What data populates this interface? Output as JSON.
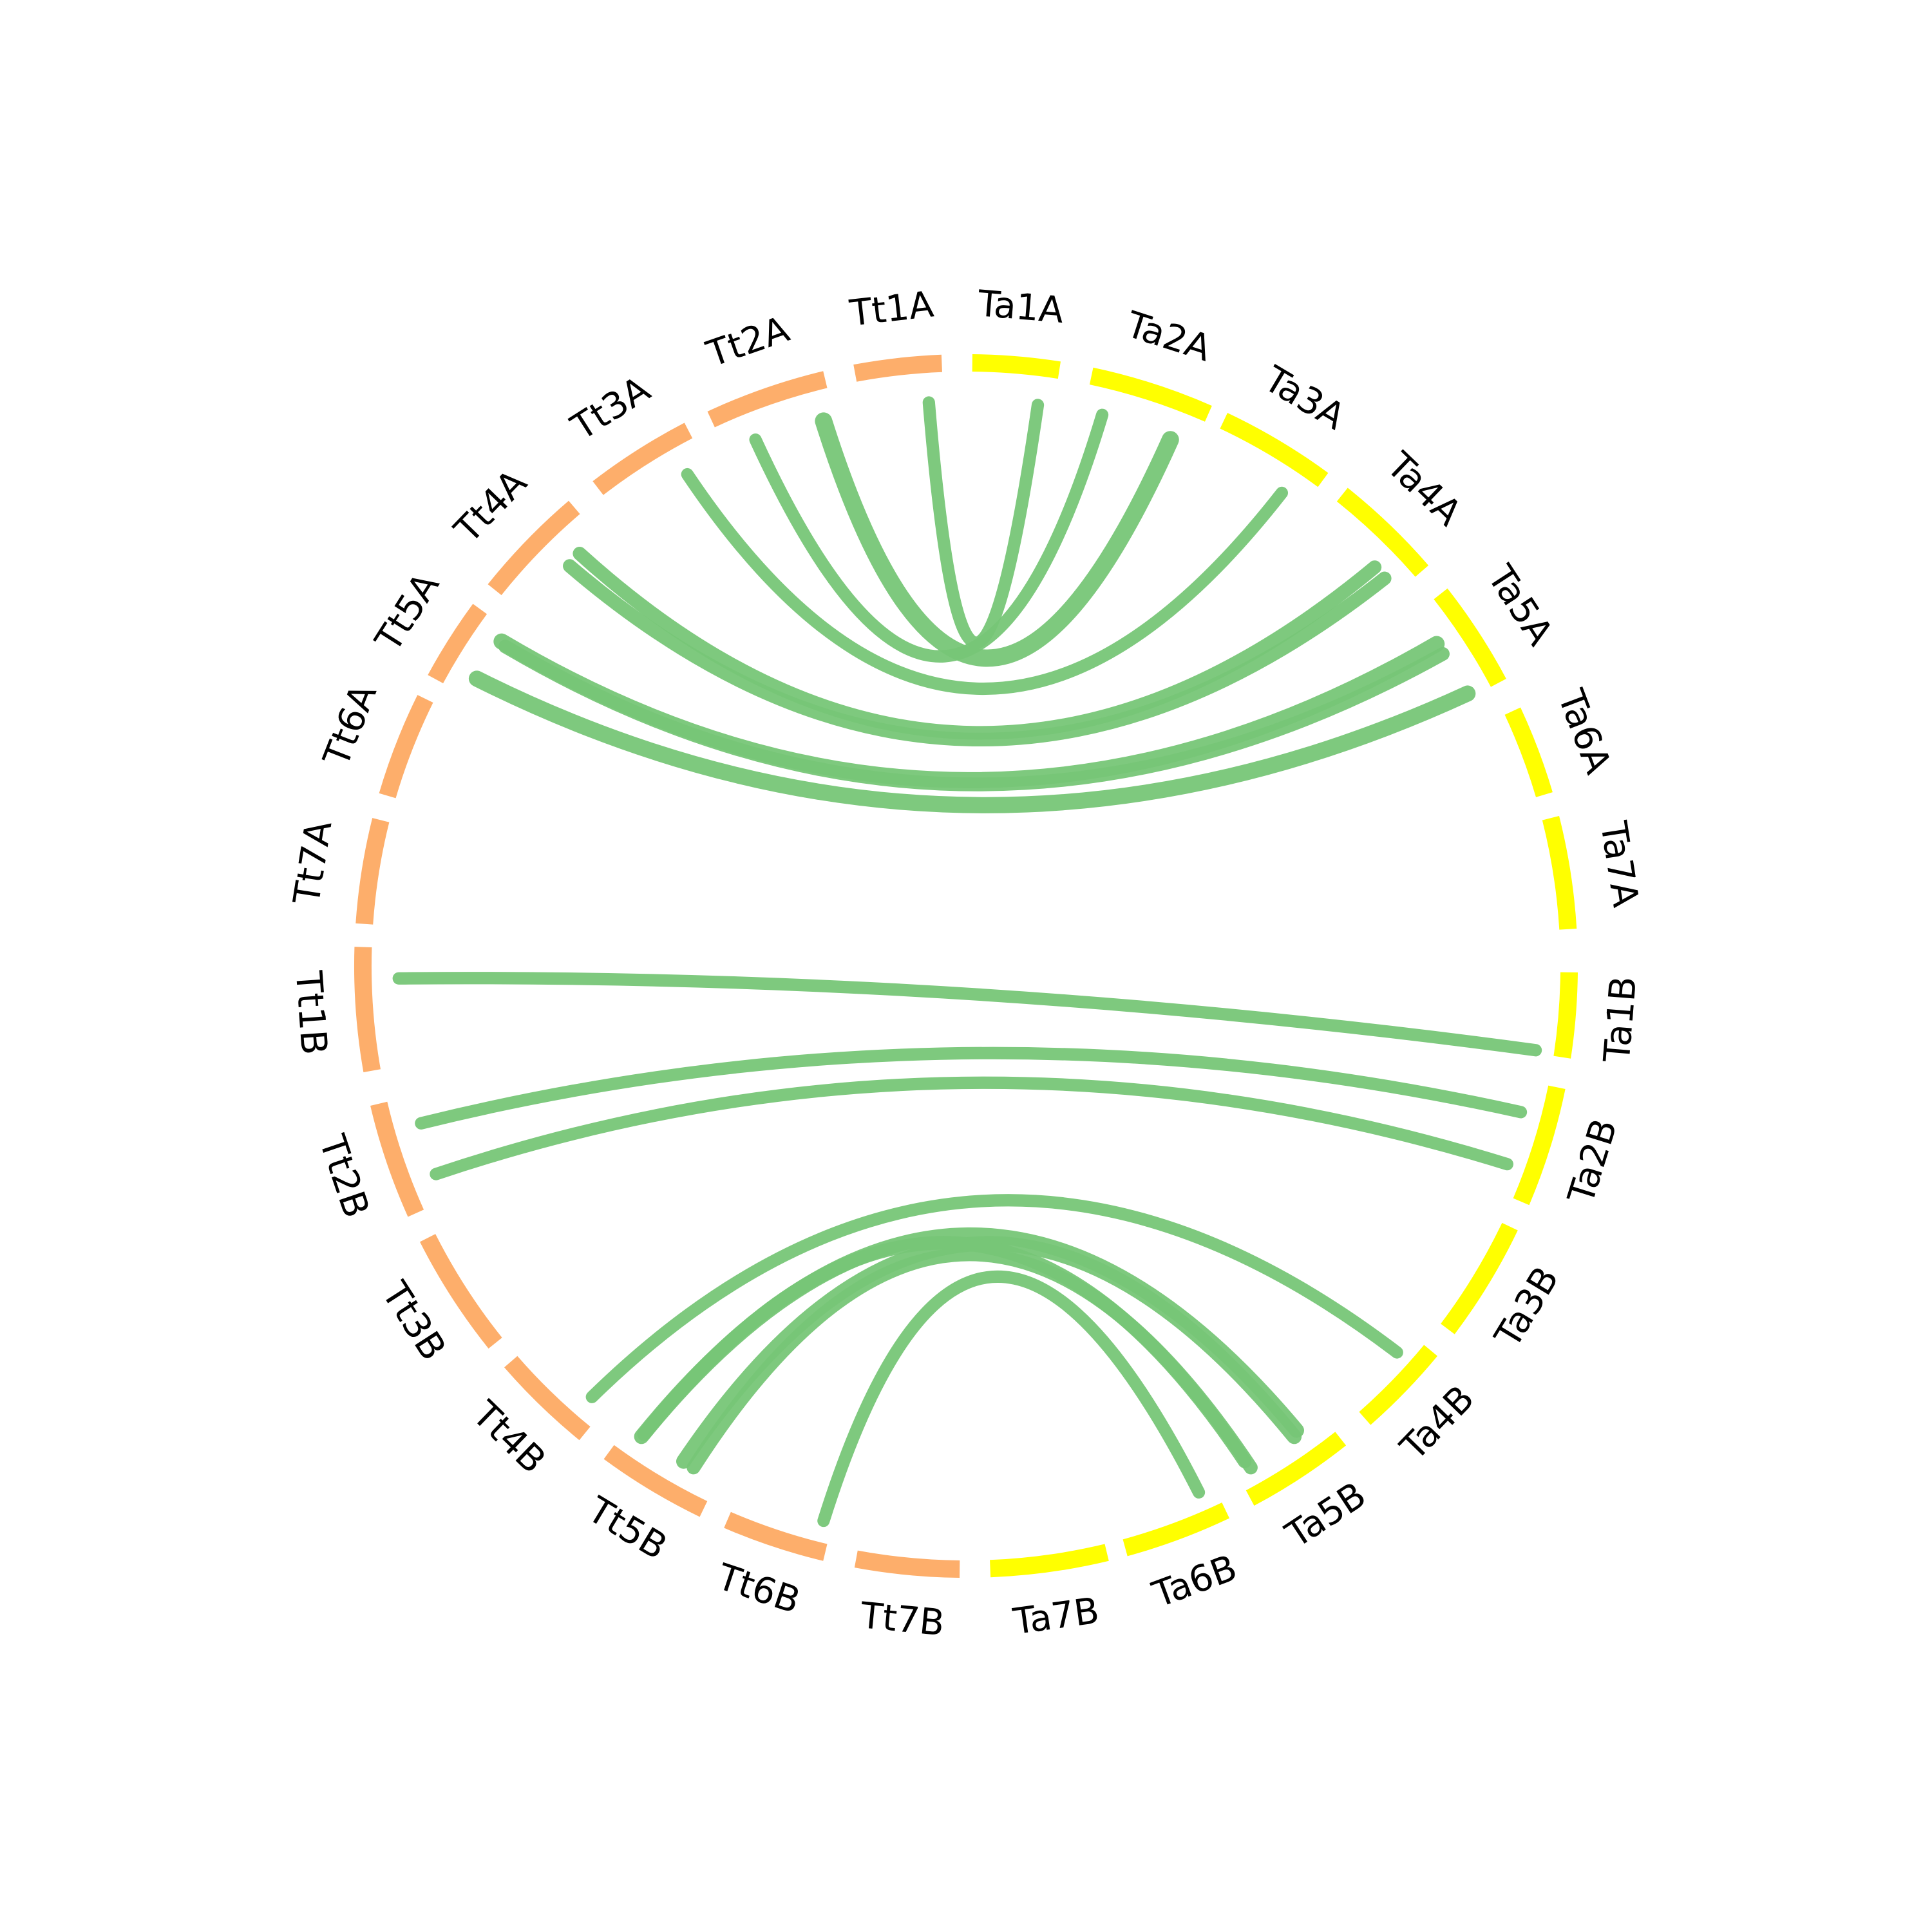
{
  "segments": [
    {
      "label": "Ta1A",
      "color": "#ffff00"
    },
    {
      "label": "Ta2A",
      "color": "#ffff00"
    },
    {
      "label": "Ta3A",
      "color": "#ffff00"
    },
    {
      "label": "Ta4A",
      "color": "#ffff00"
    },
    {
      "label": "Ta5A",
      "color": "#ffff00"
    },
    {
      "label": "Ta6A",
      "color": "#ffff00"
    },
    {
      "label": "Ta7A",
      "color": "#ffff00"
    },
    {
      "label": "Ta1B",
      "color": "#ffff00"
    },
    {
      "label": "Ta2B",
      "color": "#ffff00"
    },
    {
      "label": "Ta3B",
      "color": "#ffff00"
    },
    {
      "label": "Ta4B",
      "color": "#ffff00"
    },
    {
      "label": "Ta5B",
      "color": "#ffff00"
    },
    {
      "label": "Ta6B",
      "color": "#ffff00"
    },
    {
      "label": "Ta7B",
      "color": "#ffff00"
    },
    {
      "label": "Tt7B",
      "color": "#fdae6b"
    },
    {
      "label": "Tt6B",
      "color": "#fdae6b"
    },
    {
      "label": "Tt5B",
      "color": "#fdae6b"
    },
    {
      "label": "Tt4B",
      "color": "#fdae6b"
    },
    {
      "label": "Tt3B",
      "color": "#fdae6b"
    },
    {
      "label": "Tt2B",
      "color": "#fdae6b"
    },
    {
      "label": "Tt1B",
      "color": "#fdae6b"
    },
    {
      "label": "Tt7A",
      "color": "#fdae6b"
    },
    {
      "label": "Tt6A",
      "color": "#fdae6b"
    },
    {
      "label": "Tt5A",
      "color": "#fdae6b"
    },
    {
      "label": "Tt4A",
      "color": "#fdae6b"
    },
    {
      "label": "Tt3A",
      "color": "#fdae6b"
    },
    {
      "label": "Tt2A",
      "color": "#fdae6b"
    },
    {
      "label": "Tt1A",
      "color": "#fdae6b"
    }
  ],
  "link_color": "#77c677"
}
